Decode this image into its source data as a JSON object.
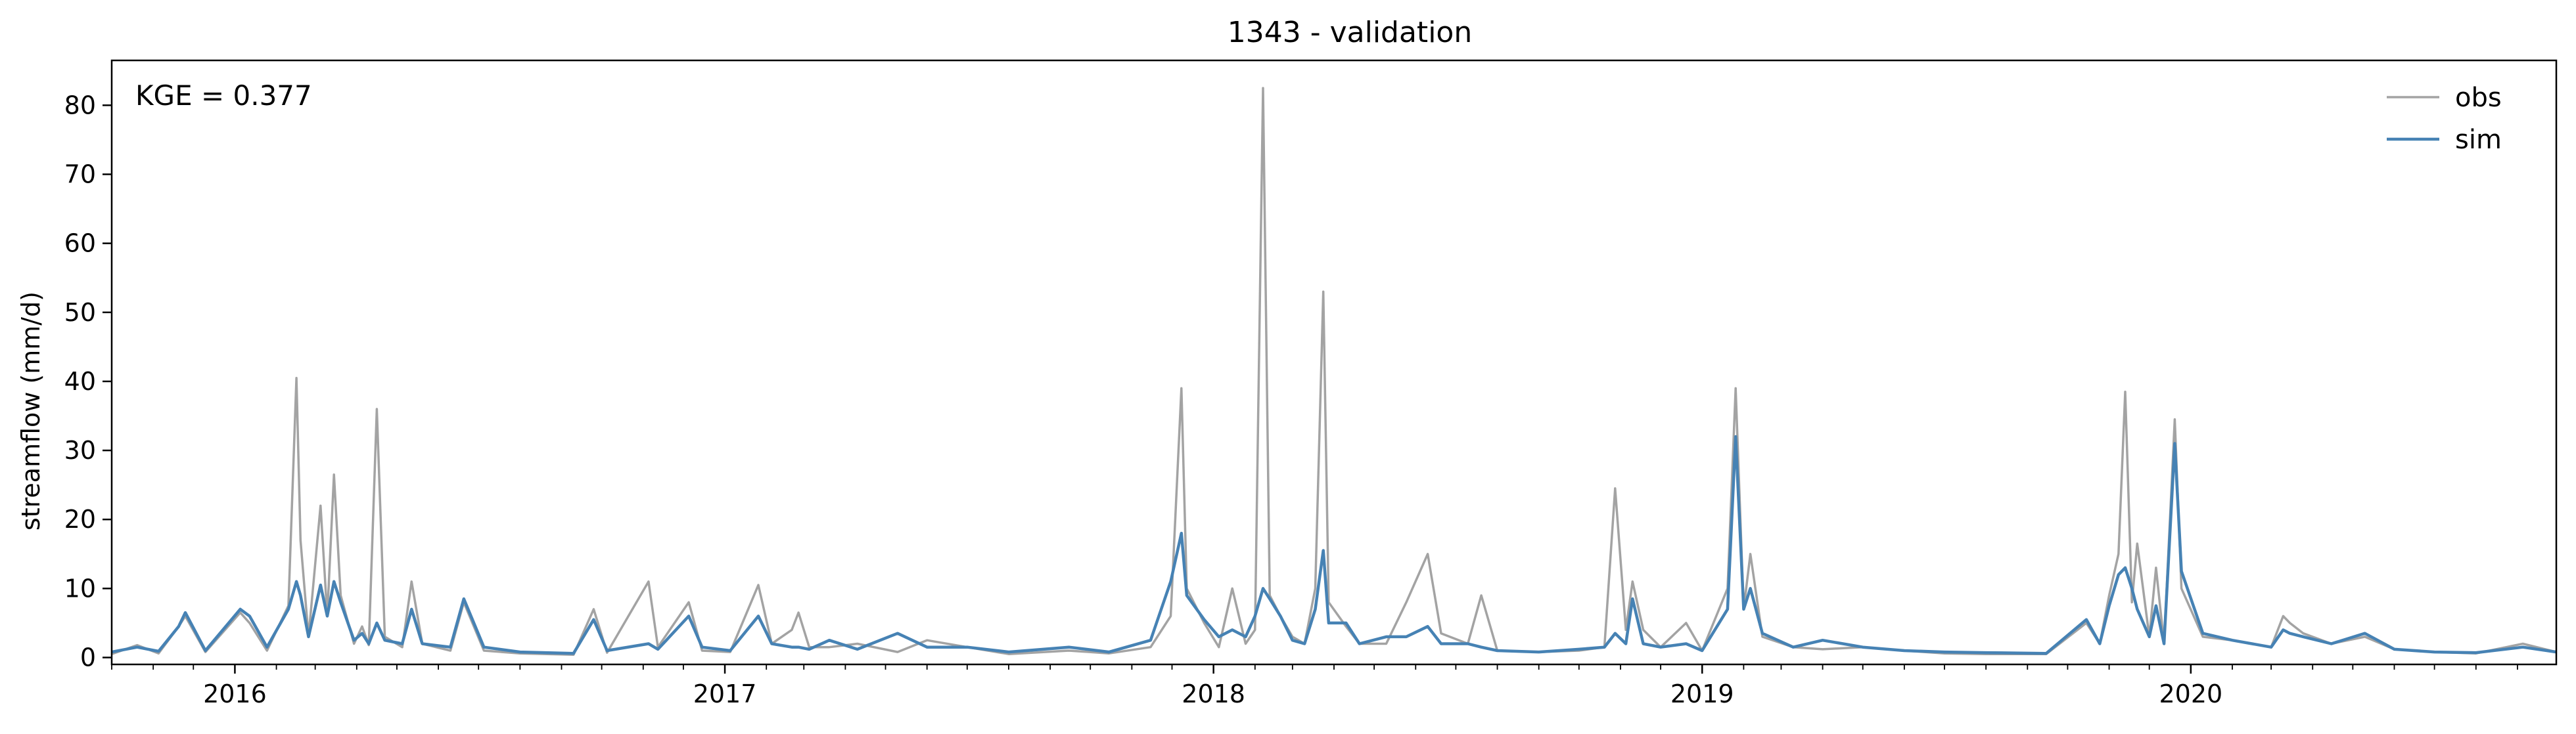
{
  "chart_data": {
    "type": "line",
    "title": "1343 - validation",
    "xlabel": "",
    "ylabel": "streamflow (mm/d)",
    "annotation": "KGE = 0.377",
    "xlim": [
      "2015-10-01",
      "2020-09-30"
    ],
    "ylim": [
      -1,
      86.5
    ],
    "yticks": [
      0,
      10,
      20,
      30,
      40,
      50,
      60,
      70,
      80
    ],
    "xtick_labels": [
      "2016",
      "2017",
      "2018",
      "2019",
      "2020"
    ],
    "xtick_dates": [
      "2016-01-01",
      "2017-01-01",
      "2018-01-01",
      "2019-01-01",
      "2020-01-01"
    ],
    "grid": false,
    "legend": {
      "placement": "top-right",
      "entries": [
        "obs",
        "sim"
      ]
    },
    "colors": {
      "obs": "#a3a3a3",
      "sim": "#4682b4"
    },
    "series": [
      {
        "name": "obs",
        "points": [
          [
            "2015-10-01",
            0.5
          ],
          [
            "2015-10-20",
            1.8
          ],
          [
            "2015-11-05",
            0.6
          ],
          [
            "2015-11-20",
            4.5
          ],
          [
            "2015-11-25",
            6.0
          ],
          [
            "2015-12-10",
            0.8
          ],
          [
            "2016-01-05",
            6.5
          ],
          [
            "2016-01-12",
            5.0
          ],
          [
            "2016-01-25",
            1.0
          ],
          [
            "2016-02-10",
            7.5
          ],
          [
            "2016-02-16",
            40.5
          ],
          [
            "2016-02-19",
            17.0
          ],
          [
            "2016-02-25",
            3.0
          ],
          [
            "2016-03-05",
            22.0
          ],
          [
            "2016-03-10",
            6.0
          ],
          [
            "2016-03-15",
            26.5
          ],
          [
            "2016-03-20",
            9.0
          ],
          [
            "2016-03-30",
            2.0
          ],
          [
            "2016-04-05",
            4.5
          ],
          [
            "2016-04-10",
            1.8
          ],
          [
            "2016-04-16",
            36.0
          ],
          [
            "2016-04-22",
            3.0
          ],
          [
            "2016-05-05",
            1.5
          ],
          [
            "2016-05-12",
            11.0
          ],
          [
            "2016-05-20",
            2.0
          ],
          [
            "2016-06-10",
            1.0
          ],
          [
            "2016-06-20",
            8.0
          ],
          [
            "2016-07-05",
            1.0
          ],
          [
            "2016-08-01",
            0.6
          ],
          [
            "2016-09-10",
            0.4
          ],
          [
            "2016-09-25",
            7.0
          ],
          [
            "2016-10-05",
            0.7
          ],
          [
            "2016-11-05",
            11.0
          ],
          [
            "2016-11-12",
            1.5
          ],
          [
            "2016-12-05",
            8.0
          ],
          [
            "2016-12-15",
            1.0
          ],
          [
            "2017-01-05",
            0.8
          ],
          [
            "2017-01-26",
            10.5
          ],
          [
            "2017-02-05",
            2.0
          ],
          [
            "2017-02-20",
            4.0
          ],
          [
            "2017-02-25",
            6.5
          ],
          [
            "2017-03-05",
            1.5
          ],
          [
            "2017-03-20",
            1.5
          ],
          [
            "2017-04-10",
            2.0
          ],
          [
            "2017-05-10",
            0.8
          ],
          [
            "2017-06-01",
            2.5
          ],
          [
            "2017-07-01",
            1.5
          ],
          [
            "2017-08-01",
            0.5
          ],
          [
            "2017-09-15",
            1.0
          ],
          [
            "2017-10-15",
            0.6
          ],
          [
            "2017-11-15",
            1.5
          ],
          [
            "2017-11-30",
            6.0
          ],
          [
            "2017-12-08",
            39.0
          ],
          [
            "2017-12-12",
            10.0
          ],
          [
            "2017-12-25",
            5.0
          ],
          [
            "2018-01-05",
            1.5
          ],
          [
            "2018-01-15",
            10.0
          ],
          [
            "2018-01-25",
            2.0
          ],
          [
            "2018-02-01",
            4.0
          ],
          [
            "2018-02-07",
            82.5
          ],
          [
            "2018-02-12",
            9.0
          ],
          [
            "2018-02-20",
            6.0
          ],
          [
            "2018-03-01",
            3.0
          ],
          [
            "2018-03-10",
            2.0
          ],
          [
            "2018-03-18",
            10.0
          ],
          [
            "2018-03-24",
            53.0
          ],
          [
            "2018-03-28",
            8.0
          ],
          [
            "2018-04-10",
            4.5
          ],
          [
            "2018-04-20",
            2.0
          ],
          [
            "2018-05-10",
            2.0
          ],
          [
            "2018-05-25",
            8.0
          ],
          [
            "2018-06-10",
            15.0
          ],
          [
            "2018-06-20",
            3.5
          ],
          [
            "2018-07-10",
            2.0
          ],
          [
            "2018-07-20",
            9.0
          ],
          [
            "2018-08-01",
            1.0
          ],
          [
            "2018-09-01",
            0.8
          ],
          [
            "2018-10-01",
            1.0
          ],
          [
            "2018-10-20",
            1.5
          ],
          [
            "2018-10-28",
            24.5
          ],
          [
            "2018-11-05",
            4.0
          ],
          [
            "2018-11-10",
            11.0
          ],
          [
            "2018-11-18",
            4.0
          ],
          [
            "2018-12-01",
            1.5
          ],
          [
            "2018-12-20",
            5.0
          ],
          [
            "2019-01-01",
            1.0
          ],
          [
            "2019-01-20",
            10.0
          ],
          [
            "2019-01-26",
            39.0
          ],
          [
            "2019-02-01",
            7.0
          ],
          [
            "2019-02-06",
            15.0
          ],
          [
            "2019-02-15",
            3.0
          ],
          [
            "2019-03-10",
            1.5
          ],
          [
            "2019-04-01",
            1.2
          ],
          [
            "2019-05-01",
            1.5
          ],
          [
            "2019-06-01",
            1.0
          ],
          [
            "2019-07-01",
            0.6
          ],
          [
            "2019-08-01",
            0.5
          ],
          [
            "2019-09-15",
            0.5
          ],
          [
            "2019-10-15",
            5.0
          ],
          [
            "2019-10-25",
            2.0
          ],
          [
            "2019-11-01",
            9.0
          ],
          [
            "2019-11-08",
            15.0
          ],
          [
            "2019-11-13",
            38.5
          ],
          [
            "2019-11-18",
            8.0
          ],
          [
            "2019-11-22",
            16.5
          ],
          [
            "2019-12-01",
            3.0
          ],
          [
            "2019-12-06",
            13.0
          ],
          [
            "2019-12-12",
            2.0
          ],
          [
            "2019-12-20",
            34.5
          ],
          [
            "2019-12-25",
            10.0
          ],
          [
            "2020-01-10",
            3.0
          ],
          [
            "2020-02-01",
            2.5
          ],
          [
            "2020-03-01",
            1.5
          ],
          [
            "2020-03-10",
            6.0
          ],
          [
            "2020-03-15",
            5.0
          ],
          [
            "2020-03-25",
            3.5
          ],
          [
            "2020-04-15",
            2.0
          ],
          [
            "2020-05-10",
            3.0
          ],
          [
            "2020-06-01",
            1.2
          ],
          [
            "2020-07-01",
            0.8
          ],
          [
            "2020-08-01",
            0.6
          ],
          [
            "2020-09-05",
            2.0
          ],
          [
            "2020-09-30",
            0.8
          ]
        ]
      },
      {
        "name": "sim",
        "points": [
          [
            "2015-10-01",
            0.8
          ],
          [
            "2015-10-20",
            1.5
          ],
          [
            "2015-11-05",
            0.9
          ],
          [
            "2015-11-20",
            4.5
          ],
          [
            "2015-11-25",
            6.5
          ],
          [
            "2015-12-10",
            1.0
          ],
          [
            "2016-01-05",
            7.0
          ],
          [
            "2016-01-12",
            6.0
          ],
          [
            "2016-01-25",
            1.5
          ],
          [
            "2016-02-10",
            7.0
          ],
          [
            "2016-02-16",
            11.0
          ],
          [
            "2016-02-19",
            9.0
          ],
          [
            "2016-02-25",
            3.0
          ],
          [
            "2016-03-05",
            10.5
          ],
          [
            "2016-03-10",
            6.0
          ],
          [
            "2016-03-15",
            11.0
          ],
          [
            "2016-03-20",
            8.0
          ],
          [
            "2016-03-30",
            2.5
          ],
          [
            "2016-04-05",
            3.5
          ],
          [
            "2016-04-10",
            2.0
          ],
          [
            "2016-04-16",
            5.0
          ],
          [
            "2016-04-22",
            2.5
          ],
          [
            "2016-05-05",
            2.0
          ],
          [
            "2016-05-12",
            7.0
          ],
          [
            "2016-05-20",
            2.0
          ],
          [
            "2016-06-10",
            1.5
          ],
          [
            "2016-06-20",
            8.5
          ],
          [
            "2016-07-05",
            1.5
          ],
          [
            "2016-08-01",
            0.8
          ],
          [
            "2016-09-10",
            0.6
          ],
          [
            "2016-09-25",
            5.5
          ],
          [
            "2016-10-05",
            1.0
          ],
          [
            "2016-11-05",
            2.0
          ],
          [
            "2016-11-12",
            1.2
          ],
          [
            "2016-12-05",
            6.0
          ],
          [
            "2016-12-15",
            1.5
          ],
          [
            "2017-01-05",
            1.0
          ],
          [
            "2017-01-26",
            6.0
          ],
          [
            "2017-02-05",
            2.0
          ],
          [
            "2017-02-20",
            1.5
          ],
          [
            "2017-02-25",
            1.5
          ],
          [
            "2017-03-05",
            1.2
          ],
          [
            "2017-03-20",
            2.5
          ],
          [
            "2017-04-10",
            1.2
          ],
          [
            "2017-05-10",
            3.5
          ],
          [
            "2017-06-01",
            1.5
          ],
          [
            "2017-07-01",
            1.5
          ],
          [
            "2017-08-01",
            0.8
          ],
          [
            "2017-09-15",
            1.5
          ],
          [
            "2017-10-15",
            0.8
          ],
          [
            "2017-11-15",
            2.5
          ],
          [
            "2017-11-30",
            11.0
          ],
          [
            "2017-12-08",
            18.0
          ],
          [
            "2017-12-12",
            9.0
          ],
          [
            "2017-12-25",
            5.5
          ],
          [
            "2018-01-05",
            3.0
          ],
          [
            "2018-01-15",
            4.0
          ],
          [
            "2018-01-25",
            3.0
          ],
          [
            "2018-02-01",
            6.0
          ],
          [
            "2018-02-07",
            10.0
          ],
          [
            "2018-02-12",
            8.5
          ],
          [
            "2018-02-20",
            6.0
          ],
          [
            "2018-03-01",
            2.5
          ],
          [
            "2018-03-10",
            2.0
          ],
          [
            "2018-03-18",
            7.0
          ],
          [
            "2018-03-24",
            15.5
          ],
          [
            "2018-03-28",
            5.0
          ],
          [
            "2018-04-10",
            5.0
          ],
          [
            "2018-04-20",
            2.0
          ],
          [
            "2018-05-10",
            3.0
          ],
          [
            "2018-05-25",
            3.0
          ],
          [
            "2018-06-10",
            4.5
          ],
          [
            "2018-06-20",
            2.0
          ],
          [
            "2018-07-10",
            2.0
          ],
          [
            "2018-07-20",
            1.5
          ],
          [
            "2018-08-01",
            1.0
          ],
          [
            "2018-09-01",
            0.8
          ],
          [
            "2018-10-01",
            1.2
          ],
          [
            "2018-10-20",
            1.5
          ],
          [
            "2018-10-28",
            3.5
          ],
          [
            "2018-11-05",
            2.0
          ],
          [
            "2018-11-10",
            8.5
          ],
          [
            "2018-11-18",
            2.0
          ],
          [
            "2018-12-01",
            1.5
          ],
          [
            "2018-12-20",
            2.0
          ],
          [
            "2019-01-01",
            1.0
          ],
          [
            "2019-01-20",
            7.0
          ],
          [
            "2019-01-26",
            32.0
          ],
          [
            "2019-02-01",
            7.0
          ],
          [
            "2019-02-06",
            10.0
          ],
          [
            "2019-02-15",
            3.5
          ],
          [
            "2019-03-10",
            1.5
          ],
          [
            "2019-04-01",
            2.5
          ],
          [
            "2019-05-01",
            1.5
          ],
          [
            "2019-06-01",
            1.0
          ],
          [
            "2019-07-01",
            0.8
          ],
          [
            "2019-08-01",
            0.7
          ],
          [
            "2019-09-15",
            0.6
          ],
          [
            "2019-10-15",
            5.5
          ],
          [
            "2019-10-25",
            2.0
          ],
          [
            "2019-11-01",
            7.5
          ],
          [
            "2019-11-08",
            12.0
          ],
          [
            "2019-11-13",
            13.0
          ],
          [
            "2019-11-18",
            10.0
          ],
          [
            "2019-11-22",
            7.0
          ],
          [
            "2019-12-01",
            3.0
          ],
          [
            "2019-12-06",
            7.5
          ],
          [
            "2019-12-12",
            2.0
          ],
          [
            "2019-12-20",
            31.0
          ],
          [
            "2019-12-25",
            12.5
          ],
          [
            "2020-01-10",
            3.5
          ],
          [
            "2020-02-01",
            2.5
          ],
          [
            "2020-03-01",
            1.5
          ],
          [
            "2020-03-10",
            4.0
          ],
          [
            "2020-03-15",
            3.5
          ],
          [
            "2020-03-25",
            3.0
          ],
          [
            "2020-04-15",
            2.0
          ],
          [
            "2020-05-10",
            3.5
          ],
          [
            "2020-06-01",
            1.2
          ],
          [
            "2020-07-01",
            0.8
          ],
          [
            "2020-08-01",
            0.7
          ],
          [
            "2020-09-05",
            1.5
          ],
          [
            "2020-09-30",
            0.8
          ]
        ]
      }
    ]
  }
}
